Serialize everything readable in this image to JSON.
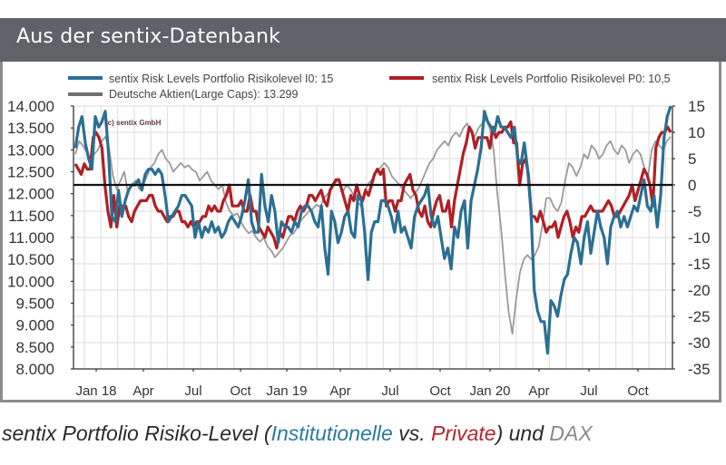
{
  "header": {
    "title": "Aus der sentix-Datenbank"
  },
  "caption": {
    "prefix": "sentix Portfolio Risiko-Level (",
    "institutional": "Institutionelle",
    "vs": " vs. ",
    "private": "Private",
    "suffix": ") und ",
    "dax": "DAX"
  },
  "colors": {
    "header_bg": "#5f6368",
    "institutional": "#2b6f93",
    "private": "#b01f24",
    "dax": "#9a9a9a",
    "zero_line": "#111111",
    "grid": "#e2e2e2"
  },
  "chart_data": {
    "type": "line",
    "title": "",
    "watermark": "(c) sentix GmbH",
    "xlabel": "",
    "ylabel_left": "",
    "ylabel_right": "",
    "x_tick_labels": [
      "Jan 18",
      "Apr",
      "Jul",
      "Oct",
      "Jan 19",
      "Apr",
      "Jul",
      "Oct",
      "Jan 20",
      "Apr",
      "Jul",
      "Oct"
    ],
    "x_range": [
      "Dec 2017",
      "Dec 2020"
    ],
    "y_left": {
      "ylim": [
        8000,
        14000
      ],
      "ticks": [
        "14.000",
        "13.500",
        "13.000",
        "12.500",
        "12.000",
        "11.500",
        "11.000",
        "10.500",
        "10.000",
        "9.500",
        "9.000",
        "8.500",
        "8.000"
      ],
      "tick_values": [
        14000,
        13500,
        13000,
        12500,
        12000,
        11500,
        11000,
        10500,
        10000,
        9500,
        9000,
        8500,
        8000
      ]
    },
    "y_right": {
      "ylim": [
        -35,
        15
      ],
      "ticks": [
        "15",
        "10",
        "5",
        "0",
        "-5",
        "-10",
        "-15",
        "-20",
        "-25",
        "-30",
        "-35"
      ],
      "tick_values": [
        15,
        10,
        5,
        0,
        -5,
        -10,
        -15,
        -20,
        -25,
        -30,
        -35
      ]
    },
    "grid": true,
    "reference_line": 0,
    "legend": [
      {
        "label": "sentix Risk Levels Portfolio Risikolevel I0: 15",
        "series": "institutional"
      },
      {
        "label": "Deutsche Aktien(Large Caps): 13.299",
        "series": "dax"
      },
      {
        "label": "sentix Risk Levels Portfolio Risikolevel P0: 10,5",
        "series": "private"
      }
    ],
    "series": [
      {
        "name": "sentix Risk Levels Portfolio Risikolevel I0",
        "axis": "right",
        "values": [
          7,
          11,
          13,
          8,
          5,
          3,
          13,
          11,
          12,
          14,
          6,
          -6,
          -7,
          -1,
          -6,
          -3,
          -1,
          0,
          0,
          1,
          -1,
          2,
          3,
          3,
          2,
          3,
          2,
          -2,
          -7,
          -6,
          -5,
          -4,
          -2,
          -2,
          -3,
          -4,
          -10,
          -7,
          -10,
          -8,
          -9,
          -7,
          -9,
          -8,
          -10,
          -9,
          -7,
          -6,
          -7,
          -8,
          -6,
          -3,
          1,
          -7,
          -9,
          -9,
          2,
          -4,
          -7,
          -2,
          -5,
          -11,
          -7,
          -8,
          -8,
          -9,
          -7,
          -8,
          -5,
          -4,
          -4,
          -5,
          -7,
          -8,
          -4,
          -12,
          -17,
          -5,
          -7,
          -11,
          -9,
          -6,
          -5,
          -9,
          -10,
          -2,
          -3,
          -9,
          -18,
          -9,
          -7,
          -7,
          -3,
          -3,
          -4,
          -6,
          -9,
          -5,
          -9,
          -8,
          -10,
          -12,
          -6,
          -4,
          -3,
          -2,
          0,
          -6,
          -8,
          -6,
          -10,
          -14,
          -12,
          -16,
          -8,
          -10,
          -5,
          -3,
          -12,
          -3,
          0,
          3,
          7,
          14,
          12,
          11,
          10,
          13,
          11,
          11,
          10,
          9,
          11,
          5,
          4,
          8,
          3,
          -5,
          -20,
          -24,
          -26,
          -26,
          -32,
          -22,
          -23,
          -25,
          -21,
          -18,
          -17,
          -13,
          -10,
          -11,
          -15,
          -10,
          -7,
          -13,
          -9,
          -5,
          -8,
          -10,
          -15,
          -8,
          -6,
          -5,
          -8,
          -6,
          -8,
          -6,
          -4,
          -5,
          -2,
          1,
          -4,
          -5,
          -2,
          -8,
          -2,
          9,
          13,
          15
        ]
      },
      {
        "name": "sentix Risk Levels Portfolio Risikolevel P0",
        "axis": "right",
        "values": [
          4,
          3,
          2,
          4,
          3,
          3,
          9,
          10,
          9,
          7,
          0,
          -5,
          -8,
          -2,
          -8,
          -4,
          -4,
          -4,
          -6,
          -7,
          -5,
          -4,
          -3,
          -3,
          -3,
          -2,
          -2,
          -4,
          -5,
          -5,
          -6,
          -7,
          -6,
          -6,
          -5,
          -5,
          -7,
          -7,
          -8,
          -7,
          -8,
          -7,
          -7,
          -6,
          -6,
          -4,
          -5,
          -4,
          -5,
          -5,
          -3,
          -2,
          0,
          -4,
          -4,
          -4,
          -3,
          -5,
          -5,
          -2,
          -5,
          -5,
          -8,
          -9,
          -10,
          -8,
          -9,
          -10,
          -12,
          -9,
          -10,
          -8,
          -6,
          -6,
          -7,
          -5,
          -4,
          -5,
          -4,
          -2,
          -2,
          -3,
          -2,
          -1,
          -3,
          -4,
          -1,
          0,
          1,
          1,
          -1,
          -3,
          -5,
          -2,
          -3,
          0,
          -2,
          -3,
          -1,
          -2,
          0,
          2,
          3,
          2,
          3,
          -4,
          -3,
          -3,
          -5,
          -3,
          -3,
          0,
          1,
          2,
          -1,
          -2,
          -5,
          -6,
          -4,
          -7,
          -8,
          -5,
          -3,
          -2,
          -5,
          -5,
          -3,
          -8,
          -3,
          0,
          3,
          6,
          8,
          11,
          10,
          7,
          9,
          9,
          9,
          9,
          7,
          11,
          9,
          10,
          10,
          11,
          11,
          12,
          8,
          8,
          0,
          4,
          5,
          2,
          -6,
          -6,
          -7,
          -5,
          -7,
          -9,
          -8,
          -8,
          -7,
          -10,
          -8,
          -6,
          -5,
          -7,
          -10,
          -8,
          -9,
          -6,
          -6,
          -5,
          -4,
          -5,
          -5,
          -5,
          -5,
          -4,
          -3,
          -4,
          -6,
          -6,
          -5,
          -4,
          -3,
          -2,
          0,
          -3,
          -1,
          1,
          3,
          2,
          0,
          -4,
          7,
          9,
          10,
          10,
          11,
          10
        ]
      },
      {
        "name": "Deutsche Aktien(Large Caps)",
        "axis": "left",
        "values": [
          12900,
          13200,
          13100,
          12950,
          12800,
          12900,
          13000,
          13200,
          13300,
          13000,
          12400,
          12100,
          12300,
          12500,
          12000,
          12200,
          12300,
          12100,
          12200,
          12400,
          12600,
          12700,
          12900,
          13000,
          12800,
          12700,
          12500,
          12600,
          12700,
          12600,
          12650,
          12550,
          12500,
          12300,
          12400,
          12500,
          12300,
          12200,
          12100,
          12200,
          11800,
          11600,
          11500,
          11550,
          11350,
          11200,
          11100,
          11150,
          11000,
          10900,
          11000,
          10800,
          10700,
          10550,
          10650,
          10750,
          10900,
          11050,
          11100,
          11250,
          11400,
          11500,
          11600,
          11650,
          11750,
          11700,
          11900,
          12000,
          12100,
          12250,
          12300,
          12050,
          12200,
          12100,
          11950,
          11800,
          11700,
          12100,
          12250,
          12350,
          12500,
          12600,
          12700,
          12600,
          12400,
          12300,
          12200,
          12100,
          12000,
          11900,
          12000,
          12100,
          12300,
          12500,
          12700,
          12800,
          13000,
          13100,
          13200,
          13100,
          13300,
          13400,
          13300,
          13500,
          13600,
          13400,
          13300,
          13500,
          13600,
          13700,
          13500,
          13000,
          12000,
          11200,
          10200,
          9300,
          8800,
          9600,
          10200,
          10500,
          10600,
          10500,
          10600,
          10800,
          11300,
          11900,
          11900,
          11700,
          11600,
          11800,
          12300,
          12700,
          12600,
          12400,
          12600,
          12900,
          12800,
          13100,
          13000,
          12800,
          12900,
          13100,
          13200,
          13000,
          12900,
          13100,
          13000,
          12700,
          12900,
          13000,
          12900,
          12600,
          12400,
          13000,
          13200,
          13100,
          13000,
          13200,
          13300
        ]
      }
    ]
  }
}
